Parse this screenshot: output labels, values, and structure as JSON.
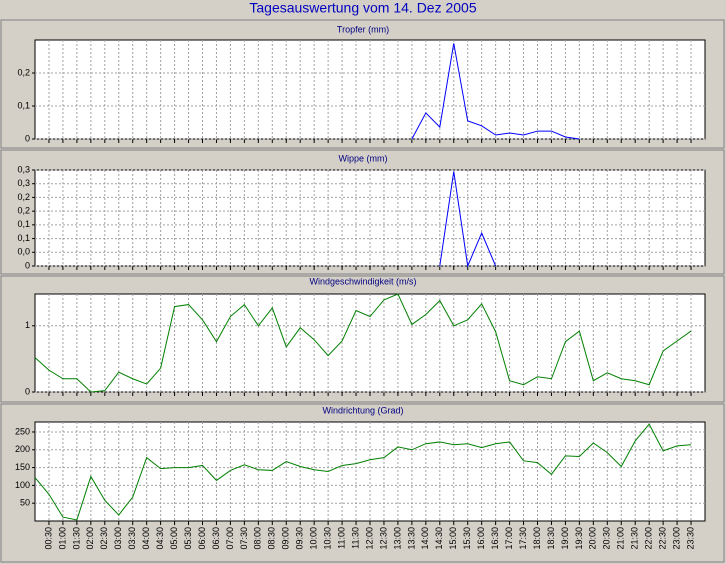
{
  "title": "Tagesauswertung vom 14. Dez 2005",
  "chart_data": [
    {
      "type": "line",
      "title": "Tropfer (mm)",
      "color": "#0000ff",
      "values": [
        null,
        null,
        null,
        null,
        null,
        null,
        null,
        null,
        null,
        null,
        null,
        null,
        null,
        null,
        null,
        null,
        null,
        null,
        null,
        null,
        null,
        null,
        null,
        null,
        null,
        null,
        null,
        0,
        0.079,
        0.036,
        0.29,
        0.055,
        0.04,
        0.012,
        0.018,
        0.012,
        0.024,
        0.024,
        0.006,
        0,
        null,
        null,
        null,
        null,
        null,
        null,
        null,
        null
      ],
      "ylim": [
        0,
        0.3
      ],
      "yticks": [
        0,
        {
          "value": 0.1,
          "label": "0,1"
        },
        {
          "value": 0.2,
          "label": "0,2"
        }
      ],
      "grid": true
    },
    {
      "type": "line",
      "title": "Wippe (mm)",
      "color": "#0000ff",
      "values": [
        null,
        null,
        null,
        null,
        null,
        null,
        null,
        null,
        null,
        null,
        null,
        null,
        null,
        null,
        null,
        null,
        null,
        null,
        null,
        null,
        null,
        null,
        null,
        null,
        null,
        null,
        null,
        null,
        null,
        0,
        0.31,
        0,
        0.108,
        0,
        null,
        null,
        null,
        null,
        null,
        null,
        null,
        null,
        null,
        null,
        null,
        null,
        null,
        null
      ],
      "ylim": [
        0,
        0.315
      ],
      "yticks": [
        0,
        {
          "value": 0.045,
          "label": "0,0"
        },
        {
          "value": 0.09,
          "label": "0,1"
        },
        {
          "value": 0.135,
          "label": "0,1"
        },
        {
          "value": 0.18,
          "label": "0,2"
        },
        {
          "value": 0.225,
          "label": "0,2"
        },
        {
          "value": 0.27,
          "label": "0,3"
        },
        {
          "value": 0.315,
          "label": "0,3"
        }
      ],
      "grid": true
    },
    {
      "type": "line",
      "title": "Windgeschwindigkeit (m/s)",
      "color": "#008000",
      "values": [
        0.52,
        0.33,
        0.2,
        0.2,
        0,
        0.02,
        0.3,
        0.2,
        0.12,
        0.36,
        1.29,
        1.32,
        1.09,
        0.76,
        1.14,
        1.32,
        1.0,
        1.27,
        0.68,
        0.97,
        0.79,
        0.55,
        0.77,
        1.23,
        1.14,
        1.39,
        1.48,
        1.02,
        1.17,
        1.38,
        1.0,
        1.09,
        1.33,
        0.91,
        0.17,
        0.11,
        0.23,
        0.2,
        0.76,
        0.92,
        0.17,
        0.29,
        0.2,
        0.17,
        0.11,
        0.62,
        0.77,
        0.92
      ],
      "ylim": [
        0,
        1.48
      ],
      "yticks": [
        0,
        1
      ],
      "grid": true
    },
    {
      "type": "line",
      "title": "Windrichtung (Grad)",
      "color": "#008000",
      "categories": [
        null,
        "00:30",
        "01:00",
        "01:30",
        "02:00",
        "02:30",
        "03:00",
        "03:30",
        "04:00",
        "04:30",
        "05:00",
        "05:30",
        "06:00",
        "06:30",
        "07:00",
        "07:30",
        "08:00",
        "08:30",
        "09:00",
        "09:30",
        "10:00",
        "10:30",
        "11:00",
        "11:30",
        "12:00",
        "12:30",
        "13:00",
        "13:30",
        "14:00",
        "14:30",
        "15:00",
        "15:30",
        "16:00",
        "16:30",
        "17:00",
        "17:30",
        "18:00",
        "18:30",
        "19:00",
        "19:30",
        "20:00",
        "20:30",
        "21:00",
        "21:30",
        "22:00",
        "22:30",
        "23:00",
        "23:30"
      ],
      "values": [
        122,
        75,
        11,
        3,
        125,
        58,
        17,
        67,
        178,
        147,
        150,
        150,
        156,
        114,
        142,
        158,
        144,
        142,
        167,
        153,
        144,
        139,
        156,
        161,
        172,
        178,
        208,
        200,
        217,
        222,
        214,
        217,
        206,
        217,
        222,
        169,
        164,
        131,
        183,
        181,
        219,
        192,
        153,
        225,
        272,
        197,
        211,
        214
      ],
      "ylim": [
        0,
        278
      ],
      "yticks": [
        50,
        100,
        150,
        200,
        250
      ],
      "grid": true
    }
  ]
}
